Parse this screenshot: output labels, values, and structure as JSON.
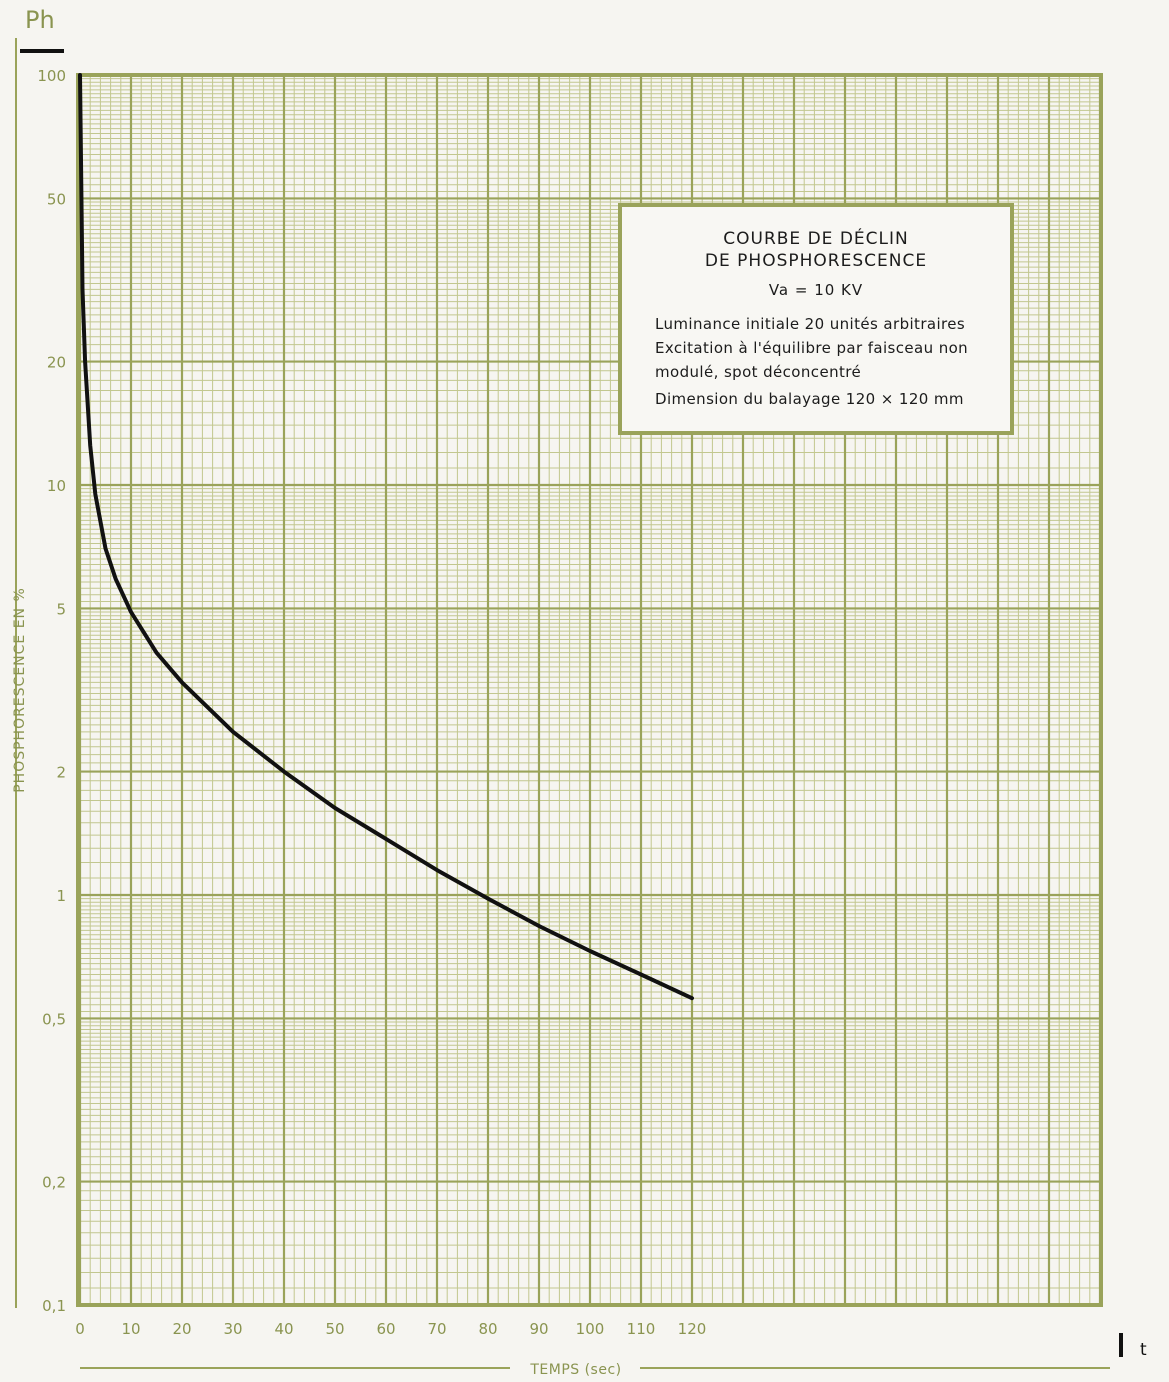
{
  "chart_data": {
    "type": "line",
    "yscale": "log",
    "ylim": [
      0.1,
      100
    ],
    "xlim": [
      0,
      200
    ],
    "y_axis_symbol": "Ph",
    "ylabel": "PHOSPHORESCENCE EN %",
    "xlabel": "TEMPS (sec)",
    "x_corner_symbol": "t",
    "y_ticks": [
      100,
      50,
      20,
      10,
      5,
      2,
      1,
      0.5,
      0.2,
      0.1
    ],
    "y_tick_labels": [
      "100",
      "50",
      "20",
      "10",
      "5",
      "2",
      "1",
      "0,5",
      "0,2",
      "0,1"
    ],
    "x_ticks": [
      0,
      10,
      20,
      30,
      40,
      50,
      60,
      70,
      80,
      90,
      100,
      110,
      120
    ],
    "x_tick_labels": [
      "0",
      "10",
      "20",
      "30",
      "40",
      "50",
      "60",
      "70",
      "80",
      "90",
      "100",
      "110",
      "120"
    ],
    "grid": true,
    "series": [
      {
        "x": [
          0,
          0.5,
          1,
          2,
          3,
          5,
          7,
          10,
          15,
          20,
          30,
          40,
          50,
          60,
          70,
          80,
          90,
          100,
          110,
          120
        ],
        "y": [
          100,
          30,
          20,
          12.5,
          9.5,
          7,
          5.9,
          4.9,
          3.9,
          3.3,
          2.5,
          2.0,
          1.63,
          1.37,
          1.15,
          0.98,
          0.84,
          0.73,
          0.64,
          0.56
        ]
      }
    ],
    "annotation": {
      "title_line1": "COURBE DE DÉCLIN",
      "title_line2": "DE PHOSPHORESCENCE",
      "condition": "Va = 10 KV",
      "line1": "Luminance initiale 20 unités arbitraires",
      "line2": "Excitation à l'équilibre par faisceau non",
      "line3": "modulé, spot déconcentré",
      "line4": "Dimension du balayage 120 × 120 mm"
    }
  },
  "colors": {
    "grid": "#9aa35a",
    "grid_light": "#c2c78f",
    "curve": "#111111",
    "paper": "#f6f5f1",
    "label": "#8a9450"
  }
}
